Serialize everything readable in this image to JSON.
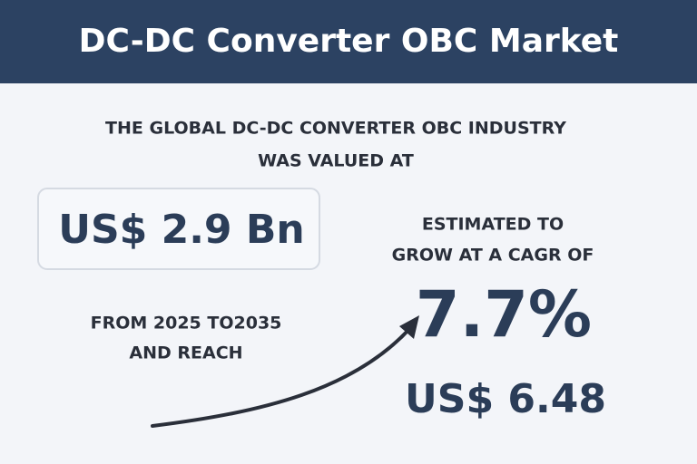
{
  "header": {
    "title": "DC-DC Converter OBC Market"
  },
  "intro": {
    "lines": [
      "THE GLOBAL DC-DC CONVERTER OBC INDUSTRY",
      "WAS VALUED AT"
    ]
  },
  "current_value": "US$ 2.9 Bn",
  "growth": {
    "lines": [
      "ESTIMATED TO",
      "GROW AT A CAGR OF"
    ],
    "cagr": "7.7%"
  },
  "period": {
    "lines": [
      "FROM 2025 TO2035",
      "AND REACH"
    ]
  },
  "future_value": "US$ 6.48"
}
